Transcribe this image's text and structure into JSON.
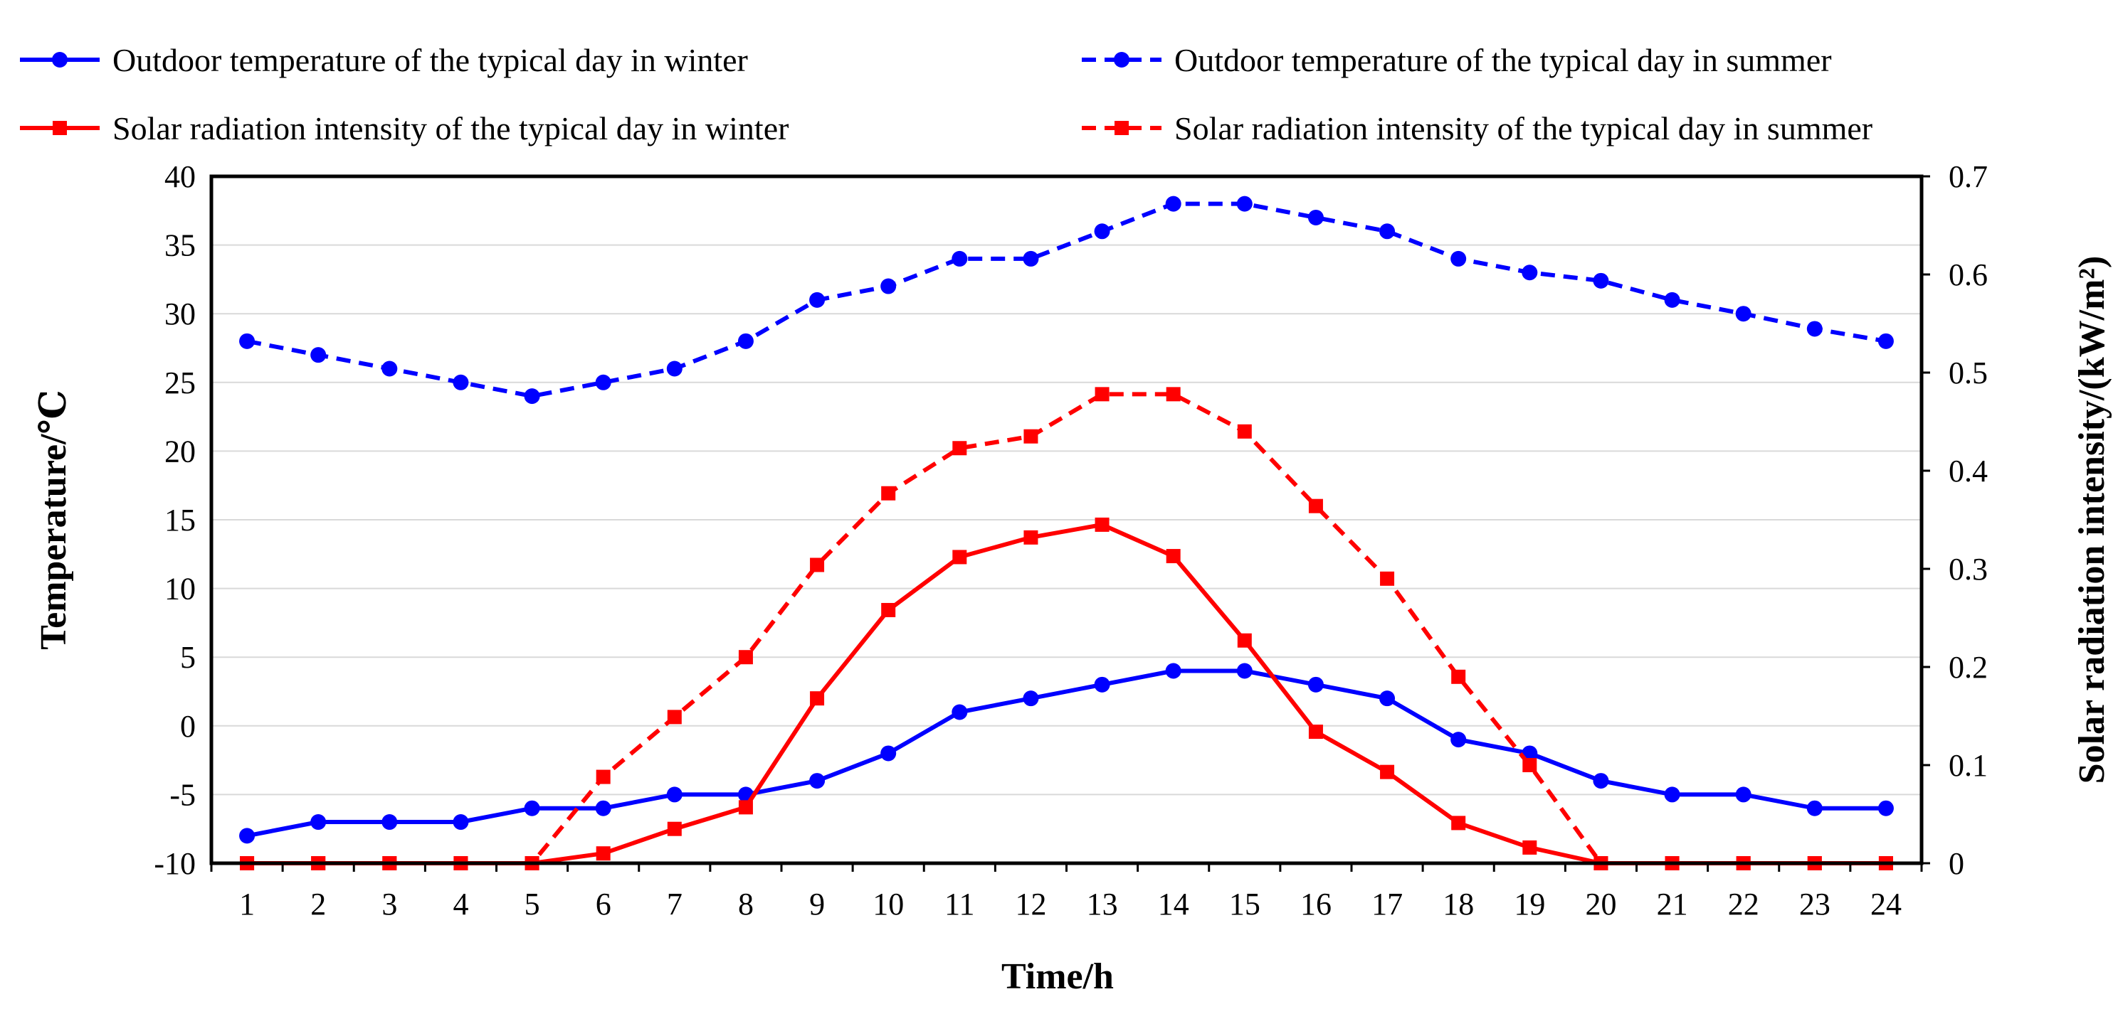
{
  "chart_data": {
    "type": "line",
    "x": [
      1,
      2,
      3,
      4,
      5,
      6,
      7,
      8,
      9,
      10,
      11,
      12,
      13,
      14,
      15,
      16,
      17,
      18,
      19,
      20,
      21,
      22,
      23,
      24
    ],
    "xlabel": "Time/h",
    "ylabel": "Temperature/℃",
    "y2label": "Solar radiation intensity/(kW/m²)",
    "ylim": [
      -10,
      40
    ],
    "ylim2": [
      0,
      0.7
    ],
    "y_ticks": [
      40,
      35,
      30,
      25,
      20,
      15,
      10,
      5,
      0,
      -5,
      -10
    ],
    "y_tick_labels": [
      "40",
      "35",
      "30",
      "25",
      "20",
      "15",
      "10",
      "5",
      "0",
      "-5",
      "-10"
    ],
    "y2_ticks": [
      0.7,
      0.6,
      0.5,
      0.4,
      0.3,
      0.2,
      0.1,
      0
    ],
    "y2_tick_labels": [
      "0.7",
      "0.6",
      "0.5",
      "0.4",
      "0.3",
      "0.2",
      "0.1",
      "0"
    ],
    "x_tick_labels": [
      "1",
      "2",
      "3",
      "4",
      "5",
      "6",
      "7",
      "8",
      "9",
      "10",
      "11",
      "12",
      "13",
      "14",
      "15",
      "16",
      "17",
      "18",
      "19",
      "20",
      "21",
      "22",
      "23",
      "24"
    ],
    "grid": true,
    "legend_position": "top",
    "series": [
      {
        "name": "Outdoor temperature  of the typical  day in winter",
        "axis": "left",
        "color": "#0000ff",
        "dash": "solid",
        "marker": "circle",
        "values": [
          -8,
          -7,
          -7,
          -7,
          -6,
          -6,
          -5,
          -5,
          -4,
          -2,
          1,
          2,
          3,
          4,
          4,
          3,
          2,
          -1,
          -2,
          -4,
          -5,
          -5,
          -6,
          -6
        ]
      },
      {
        "name": "Outdoor temperature  of the typical  day in summer",
        "axis": "left",
        "color": "#0000ff",
        "dash": "dashed",
        "marker": "circle",
        "values": [
          28,
          27,
          26,
          25,
          24,
          25,
          26,
          28,
          31,
          32,
          34,
          34,
          36,
          38,
          38,
          37,
          36,
          34,
          33,
          32.4,
          31,
          30,
          28.9,
          28
        ]
      },
      {
        "name": "Solar radiation intensity of the typical day in winter",
        "axis": "right",
        "color": "#ff0000",
        "dash": "solid",
        "marker": "square",
        "values": [
          0,
          0,
          0,
          0,
          0,
          0.01,
          0.035,
          0.057,
          0.168,
          0.258,
          0.312,
          0.332,
          0.345,
          0.313,
          0.227,
          0.134,
          0.093,
          0.041,
          0.016,
          0,
          0,
          0,
          0,
          0
        ]
      },
      {
        "name": "Solar radiation intensity of the typical day in summer",
        "axis": "right",
        "color": "#ff0000",
        "dash": "dashed",
        "marker": "square",
        "values": [
          0,
          0,
          0,
          0,
          0,
          0.088,
          0.149,
          0.21,
          0.304,
          0.377,
          0.423,
          0.435,
          0.478,
          0.478,
          0.44,
          0.364,
          0.29,
          0.19,
          0.1,
          0,
          0,
          0,
          0,
          0
        ]
      }
    ]
  }
}
